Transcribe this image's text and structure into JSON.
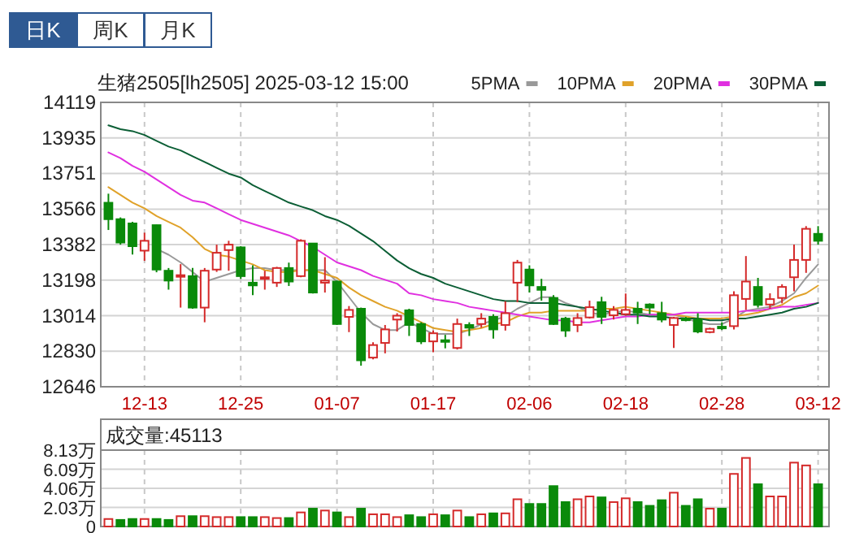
{
  "chart_data": [
    {
      "type": "candlestick",
      "title": "生猪2505[lh2505] 2025-03-12 15:00",
      "annotations": [
        "日K",
        "周K",
        "月K"
      ],
      "categories": [
        null,
        null,
        null,
        "12-13",
        null,
        null,
        null,
        null,
        null,
        null,
        null,
        "12-25",
        null,
        null,
        null,
        null,
        null,
        null,
        null,
        "01-07",
        null,
        null,
        null,
        null,
        null,
        null,
        null,
        "01-17",
        null,
        null,
        null,
        null,
        null,
        null,
        null,
        "02-06",
        null,
        null,
        null,
        null,
        null,
        null,
        null,
        "02-18",
        null,
        null,
        null,
        null,
        null,
        null,
        null,
        "02-28",
        null,
        null,
        null,
        null,
        null,
        null,
        null,
        "03-12"
      ],
      "ohlc": [
        [
          13599,
          13646,
          13458,
          13514
        ],
        [
          13514,
          13523,
          13382,
          13393
        ],
        [
          13492,
          13500,
          13331,
          13374
        ],
        [
          13351,
          13444,
          13298,
          13402
        ],
        [
          13483,
          13485,
          13239,
          13253
        ],
        [
          13247,
          13261,
          13149,
          13196
        ],
        [
          13219,
          13281,
          13056,
          13224
        ],
        [
          13219,
          13261,
          13050,
          13056
        ],
        [
          13056,
          13261,
          12980,
          13247
        ],
        [
          13253,
          13382,
          13241,
          13340
        ],
        [
          13354,
          13402,
          13247,
          13382
        ],
        [
          13368,
          13374,
          13205,
          13219
        ],
        [
          13185,
          13275,
          13120,
          13171
        ],
        [
          13205,
          13247,
          13149,
          13213
        ],
        [
          13185,
          13267,
          13163,
          13261
        ],
        [
          13261,
          13289,
          13168,
          13191
        ],
        [
          13219,
          13410,
          13213,
          13402
        ],
        [
          13388,
          13388,
          13129,
          13134
        ],
        [
          13185,
          13317,
          13134,
          13196
        ],
        [
          13191,
          13196,
          12966,
          12971
        ],
        [
          13008,
          13064,
          12929,
          13044
        ],
        [
          13050,
          13056,
          12755,
          12783
        ],
        [
          12797,
          12876,
          12788,
          12862
        ],
        [
          12873,
          12966,
          12819,
          12943
        ],
        [
          12994,
          13027,
          12932,
          13014
        ],
        [
          13042,
          13050,
          12909,
          12966
        ],
        [
          12971,
          12980,
          12867,
          12881
        ],
        [
          12881,
          12937,
          12825,
          12923
        ],
        [
          12887,
          12915,
          12845,
          12879
        ],
        [
          12847,
          12999,
          12839,
          12971
        ],
        [
          12966,
          12980,
          12909,
          12952
        ],
        [
          12971,
          13027,
          12952,
          12999
        ],
        [
          13008,
          13022,
          12895,
          12943
        ],
        [
          12966,
          13089,
          12937,
          13027
        ],
        [
          13185,
          13303,
          13084,
          13289
        ],
        [
          13253,
          13275,
          13134,
          13171
        ],
        [
          13163,
          13205,
          13092,
          13148
        ],
        [
          13106,
          13120,
          12966,
          12971
        ],
        [
          12999,
          13008,
          12904,
          12937
        ],
        [
          12966,
          13027,
          12929,
          13002
        ],
        [
          13005,
          13092,
          12999,
          13058
        ],
        [
          13084,
          13112,
          12971,
          13008
        ],
        [
          13016,
          13064,
          12994,
          13044
        ],
        [
          13022,
          13129,
          13014,
          13044
        ],
        [
          13050,
          13086,
          12971,
          13030
        ],
        [
          13072,
          13078,
          13022,
          13056
        ],
        [
          13027,
          13086,
          12980,
          12994
        ],
        [
          12966,
          13008,
          12847,
          13002
        ],
        [
          12999,
          13008,
          12985,
          12994
        ],
        [
          12994,
          13027,
          12923,
          12932
        ],
        [
          12929,
          12952,
          12923,
          12946
        ],
        [
          12957,
          12980,
          12940,
          12952
        ],
        [
          12960,
          13140,
          12943,
          13120
        ],
        [
          13101,
          13323,
          13044,
          13191
        ],
        [
          13163,
          13210,
          13056,
          13070
        ],
        [
          13072,
          13130,
          13050,
          13100
        ],
        [
          13106,
          13177,
          13078,
          13163
        ],
        [
          13213,
          13382,
          13140,
          13303
        ],
        [
          13303,
          13478,
          13236,
          13464
        ],
        [
          13438,
          13478,
          13382,
          13402
        ]
      ],
      "series": [
        {
          "name": "5PMA",
          "type": "line",
          "color": "#999999",
          "values": [
            null,
            null,
            null,
            null,
            13360,
            13330,
            13290,
            13240,
            13190,
            13210,
            13230,
            13250,
            13260,
            13260,
            13250,
            13250,
            13250,
            13250,
            13250,
            13190,
            13110,
            13030,
            12970,
            12940,
            12940,
            12980,
            12950,
            12920,
            12920,
            12920,
            12940,
            12970,
            12990,
            13010,
            13050,
            13080,
            13110,
            13110,
            13080,
            13060,
            13030,
            13020,
            13030,
            13040,
            13030,
            13020,
            13020,
            13020,
            13000,
            12980,
            12970,
            12970,
            13000,
            13040,
            13050,
            13060,
            13090,
            13130,
            13210,
            13280
          ]
        },
        {
          "name": "10PMA",
          "type": "line",
          "color": "#e0a22a",
          "values": [
            13680,
            13640,
            13600,
            13570,
            13530,
            13500,
            13470,
            13420,
            13360,
            13330,
            13320,
            13300,
            13280,
            13250,
            13240,
            13240,
            13250,
            13250,
            13230,
            13210,
            13160,
            13120,
            13090,
            13060,
            13040,
            13010,
            12980,
            12950,
            12940,
            12930,
            12940,
            12950,
            12970,
            12980,
            13010,
            13030,
            13030,
            13040,
            13040,
            13040,
            13040,
            13050,
            13050,
            13060,
            13050,
            13040,
            13030,
            13020,
            13010,
            13000,
            13000,
            13000,
            13010,
            13020,
            13030,
            13050,
            13070,
            13110,
            13130,
            13170
          ]
        },
        {
          "name": "20PMA",
          "type": "line",
          "color": "#e030e0",
          "values": [
            13860,
            13830,
            13790,
            13760,
            13720,
            13680,
            13640,
            13610,
            13600,
            13570,
            13540,
            13510,
            13490,
            13470,
            13450,
            13430,
            13400,
            13370,
            13330,
            13290,
            13270,
            13250,
            13220,
            13200,
            13180,
            13130,
            13120,
            13100,
            13090,
            13080,
            13060,
            13050,
            13040,
            13030,
            13020,
            13010,
            13000,
            12990,
            12990,
            12980,
            12980,
            12990,
            13000,
            13010,
            13010,
            13020,
            13020,
            13020,
            13030,
            13030,
            13030,
            13030,
            13030,
            13040,
            13040,
            13050,
            13060,
            13060,
            13070,
            13080
          ]
        },
        {
          "name": "30PMA",
          "type": "line",
          "color": "#0b5e35",
          "values": [
            14000,
            13980,
            13970,
            13950,
            13920,
            13890,
            13870,
            13840,
            13810,
            13780,
            13750,
            13730,
            13690,
            13660,
            13630,
            13600,
            13580,
            13560,
            13530,
            13510,
            13480,
            13440,
            13400,
            13350,
            13300,
            13260,
            13230,
            13210,
            13180,
            13160,
            13140,
            13120,
            13100,
            13090,
            13090,
            13080,
            13080,
            13080,
            13070,
            13060,
            13050,
            13040,
            13030,
            13020,
            13020,
            13010,
            13010,
            13000,
            13000,
            13000,
            12990,
            12990,
            13000,
            13000,
            13010,
            13020,
            13030,
            13050,
            13060,
            13080
          ]
        }
      ],
      "ylim": [
        12646,
        14119
      ],
      "yticks": [
        12646,
        12830,
        13014,
        13198,
        13382,
        13566,
        13751,
        13935,
        14119
      ],
      "grid": true,
      "legend": "top right"
    },
    {
      "type": "bar",
      "title": "成交量:45113",
      "categories": [
        null,
        null,
        null,
        null,
        null,
        null,
        null,
        null,
        null,
        null,
        null,
        null,
        null,
        null,
        null,
        null,
        null,
        null,
        null,
        null,
        null,
        null,
        null,
        null,
        null,
        null,
        null,
        null,
        null,
        null,
        null,
        null,
        null,
        null,
        null,
        null,
        null,
        null,
        null,
        null,
        null,
        null,
        null,
        null,
        null,
        null,
        null,
        null,
        null,
        null,
        null,
        null,
        null,
        null,
        null,
        null,
        null,
        null,
        null,
        null
      ],
      "values": [
        0.8,
        0.7,
        0.8,
        0.8,
        0.8,
        0.7,
        1.1,
        1.1,
        1.1,
        1.0,
        1.0,
        1.0,
        1.0,
        1.0,
        0.9,
        0.9,
        1.5,
        1.9,
        1.7,
        1.5,
        1.0,
        1.9,
        1.3,
        1.3,
        1.0,
        1.2,
        1.0,
        1.3,
        1.2,
        1.7,
        1.0,
        1.3,
        1.4,
        1.4,
        2.9,
        2.4,
        2.4,
        4.3,
        2.6,
        2.9,
        3.2,
        3.1,
        2.6,
        3.0,
        2.6,
        2.2,
        2.8,
        3.6,
        2.2,
        2.9,
        1.9,
        1.9,
        5.6,
        7.3,
        4.5,
        3.2,
        3.2,
        6.8,
        6.5,
        4.5
      ],
      "colors": [
        "#d42a2a",
        "#0a8a0a",
        "#0a8a0a",
        "#d42a2a",
        "#0a8a0a",
        "#0a8a0a",
        "#d42a2a",
        "#0a8a0a",
        "#d42a2a",
        "#d42a2a",
        "#d42a2a",
        "#0a8a0a",
        "#0a8a0a",
        "#d42a2a",
        "#d42a2a",
        "#0a8a0a",
        "#d42a2a",
        "#0a8a0a",
        "#d42a2a",
        "#0a8a0a",
        "#d42a2a",
        "#0a8a0a",
        "#d42a2a",
        "#d42a2a",
        "#d42a2a",
        "#0a8a0a",
        "#0a8a0a",
        "#d42a2a",
        "#0a8a0a",
        "#d42a2a",
        "#0a8a0a",
        "#d42a2a",
        "#0a8a0a",
        "#d42a2a",
        "#d42a2a",
        "#0a8a0a",
        "#0a8a0a",
        "#0a8a0a",
        "#0a8a0a",
        "#d42a2a",
        "#d42a2a",
        "#0a8a0a",
        "#d42a2a",
        "#d42a2a",
        "#0a8a0a",
        "#0a8a0a",
        "#0a8a0a",
        "#d42a2a",
        "#0a8a0a",
        "#0a8a0a",
        "#d42a2a",
        "#0a8a0a",
        "#d42a2a",
        "#d42a2a",
        "#0a8a0a",
        "#d42a2a",
        "#d42a2a",
        "#d42a2a",
        "#d42a2a",
        "#0a8a0a"
      ],
      "ylim": [
        0,
        8.13
      ],
      "yticks": [
        0,
        {
          "value": 2.03,
          "label": "2.03万"
        },
        {
          "value": 4.06,
          "label": "4.06万"
        },
        {
          "value": 6.09,
          "label": "6.09万"
        },
        {
          "value": 8.13,
          "label": "8.13万"
        }
      ],
      "grid": true
    }
  ]
}
